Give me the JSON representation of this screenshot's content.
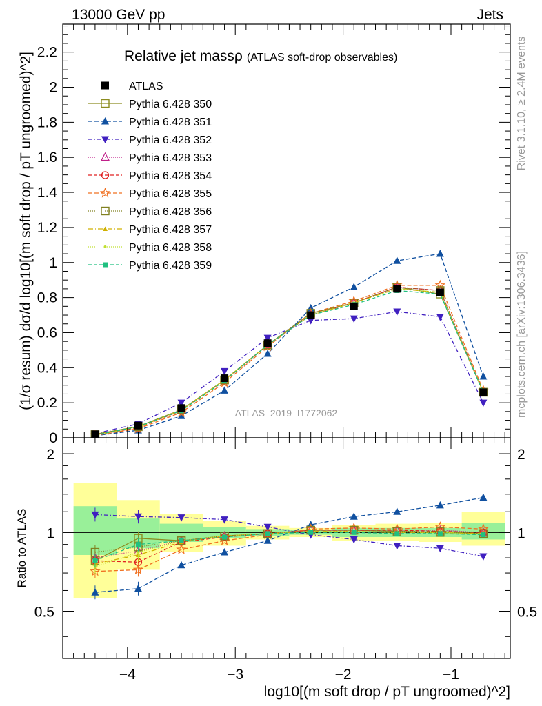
{
  "header": {
    "left": "13000 GeV pp",
    "right": "Jets"
  },
  "side_labels": {
    "rivet": "Rivet 3.1.10, ≥ 2.4M events",
    "mcplots": "mcplots.cern.ch [arXiv:1306.3436]"
  },
  "watermark": "ATLAS_2019_I1772062",
  "chart_data": {
    "type": "line",
    "title": "Relative jet massρ",
    "subtitle": "(ATLAS soft-drop observables)",
    "xlabel": "log10[(m soft drop / pT ungroomed)^2]",
    "ylabel": "(1/σ resum) dσ/d log10[(m soft drop / pT ungroomed)^2]",
    "ratio_ylabel": "Ratio to ATLAS",
    "xlim": [
      -4.6,
      -0.45
    ],
    "ylim": [
      0,
      2.36
    ],
    "ratio_ylim": [
      0.33,
      2.3
    ],
    "ratio_scale": "log",
    "x_ticks": [
      -4,
      -3,
      -2,
      -1
    ],
    "x_tick_labels": [
      "−4",
      "−3",
      "−2",
      "−1"
    ],
    "y_ticks": [
      0,
      0.2,
      0.4,
      0.6,
      0.8,
      1,
      1.2,
      1.4,
      1.6,
      1.8,
      2,
      2.2
    ],
    "y_tick_labels": [
      "0",
      "0.2",
      "0.4",
      "0.6",
      "0.8",
      "1",
      "1.2",
      "1.4",
      "1.6",
      "1.8",
      "2",
      "2.2"
    ],
    "ratio_ticks": [
      0.5,
      1,
      2
    ],
    "ratio_tick_labels": [
      "0.5",
      "1",
      "2"
    ],
    "legend_position": "top-left",
    "bin_edges": [
      -4.5,
      -4.1,
      -3.7,
      -3.3,
      -2.9,
      -2.5,
      -2.1,
      -1.7,
      -1.3,
      -0.9,
      -0.5
    ],
    "x": [
      -4.3,
      -3.9,
      -3.5,
      -3.1,
      -2.7,
      -2.3,
      -1.9,
      -1.5,
      -1.1,
      -0.7
    ],
    "data": {
      "name": "ATLAS",
      "values": [
        0.02,
        0.07,
        0.17,
        0.34,
        0.54,
        0.7,
        0.75,
        0.85,
        0.83,
        0.26
      ],
      "ratio_band_inner": [
        [
          0.82,
          1.26
        ],
        [
          0.87,
          1.13
        ],
        [
          0.92,
          1.08
        ],
        [
          0.95,
          1.05
        ],
        [
          0.97,
          1.03
        ],
        [
          0.98,
          1.02
        ],
        [
          0.96,
          1.04
        ],
        [
          0.96,
          1.04
        ],
        [
          0.96,
          1.04
        ],
        [
          0.94,
          1.09
        ]
      ],
      "ratio_band_outer": [
        [
          0.56,
          1.55
        ],
        [
          0.72,
          1.33
        ],
        [
          0.84,
          1.18
        ],
        [
          0.89,
          1.11
        ],
        [
          0.94,
          1.06
        ],
        [
          0.96,
          1.04
        ],
        [
          0.93,
          1.07
        ],
        [
          0.93,
          1.08
        ],
        [
          0.92,
          1.09
        ],
        [
          0.89,
          1.2
        ]
      ]
    },
    "series": [
      {
        "name": "Pythia 6.428 350",
        "color": "#8c8c20",
        "dash": "",
        "marker": "square-open",
        "values": [
          0.02,
          0.065,
          0.16,
          0.33,
          0.53,
          0.71,
          0.77,
          0.86,
          0.82,
          0.26
        ],
        "ratio": [
          0.78,
          0.95,
          0.93,
          0.97,
          0.99,
          1.02,
          1.02,
          1.01,
          1.0,
          0.99
        ]
      },
      {
        "name": "Pythia 6.428 351",
        "color": "#1050a0",
        "dash": "6,3",
        "marker": "triangle-up",
        "values": [
          0.012,
          0.043,
          0.125,
          0.27,
          0.48,
          0.74,
          0.86,
          1.01,
          1.05,
          0.35
        ],
        "ratio": [
          0.59,
          0.61,
          0.75,
          0.84,
          0.93,
          1.07,
          1.15,
          1.2,
          1.27,
          1.36
        ]
      },
      {
        "name": "Pythia 6.428 352",
        "color": "#4020c0",
        "dash": "6,3,1,3",
        "marker": "triangle-down",
        "values": [
          0.024,
          0.08,
          0.2,
          0.38,
          0.57,
          0.67,
          0.68,
          0.72,
          0.69,
          0.2
        ],
        "ratio": [
          1.17,
          1.15,
          1.14,
          1.12,
          1.05,
          0.98,
          0.94,
          0.89,
          0.87,
          0.81
        ]
      },
      {
        "name": "Pythia 6.428 353",
        "color": "#c0208a",
        "dash": "1,2",
        "marker": "triangle-up-open",
        "values": [
          0.017,
          0.062,
          0.16,
          0.33,
          0.53,
          0.7,
          0.77,
          0.86,
          0.84,
          0.26
        ],
        "ratio": [
          0.8,
          0.85,
          0.93,
          0.97,
          0.99,
          1.02,
          1.02,
          1.02,
          1.02,
          1.0
        ]
      },
      {
        "name": "Pythia 6.428 354",
        "color": "#e02020",
        "dash": "5,3",
        "marker": "circle-open",
        "values": [
          0.016,
          0.058,
          0.155,
          0.325,
          0.53,
          0.7,
          0.77,
          0.86,
          0.84,
          0.26
        ],
        "ratio": [
          0.78,
          0.77,
          0.92,
          0.96,
          0.99,
          1.02,
          1.02,
          1.02,
          1.01,
          1.0
        ]
      },
      {
        "name": "Pythia 6.428 355",
        "color": "#f07020",
        "dash": "6,3",
        "marker": "star-open",
        "values": [
          0.014,
          0.052,
          0.145,
          0.315,
          0.52,
          0.71,
          0.78,
          0.87,
          0.87,
          0.27
        ],
        "ratio": [
          0.71,
          0.72,
          0.86,
          0.93,
          0.98,
          1.03,
          1.04,
          1.03,
          1.05,
          1.03
        ]
      },
      {
        "name": "Pythia 6.428 356",
        "color": "#808020",
        "dash": "1,2",
        "marker": "square-open",
        "values": [
          0.017,
          0.063,
          0.16,
          0.33,
          0.53,
          0.71,
          0.77,
          0.86,
          0.84,
          0.26
        ],
        "ratio": [
          0.84,
          0.88,
          0.93,
          0.97,
          0.99,
          1.02,
          1.02,
          1.01,
          1.01,
          0.99
        ]
      },
      {
        "name": "Pythia 6.428 357",
        "color": "#d0b000",
        "dash": "7,3,1,3",
        "marker": "triangle-up-small",
        "values": [
          0.016,
          0.06,
          0.158,
          0.33,
          0.53,
          0.7,
          0.77,
          0.85,
          0.83,
          0.26
        ],
        "ratio": [
          0.76,
          0.82,
          0.92,
          0.97,
          0.99,
          1.01,
          1.01,
          1.0,
          1.0,
          0.99
        ]
      },
      {
        "name": "Pythia 6.428 358",
        "color": "#c0e030",
        "dash": "1,2",
        "marker": "dot",
        "values": [
          0.016,
          0.061,
          0.158,
          0.33,
          0.53,
          0.7,
          0.77,
          0.85,
          0.83,
          0.26
        ],
        "ratio": [
          0.74,
          0.84,
          0.93,
          0.97,
          0.99,
          1.01,
          1.01,
          1.0,
          1.0,
          0.99
        ]
      },
      {
        "name": "Pythia 6.428 359",
        "color": "#20c080",
        "dash": "5,3",
        "marker": "square-small",
        "values": [
          0.016,
          0.063,
          0.155,
          0.325,
          0.53,
          0.7,
          0.76,
          0.84,
          0.82,
          0.26
        ],
        "ratio": [
          0.78,
          0.9,
          0.93,
          0.96,
          0.99,
          1.0,
          1.0,
          0.99,
          0.99,
          0.98
        ]
      }
    ]
  }
}
